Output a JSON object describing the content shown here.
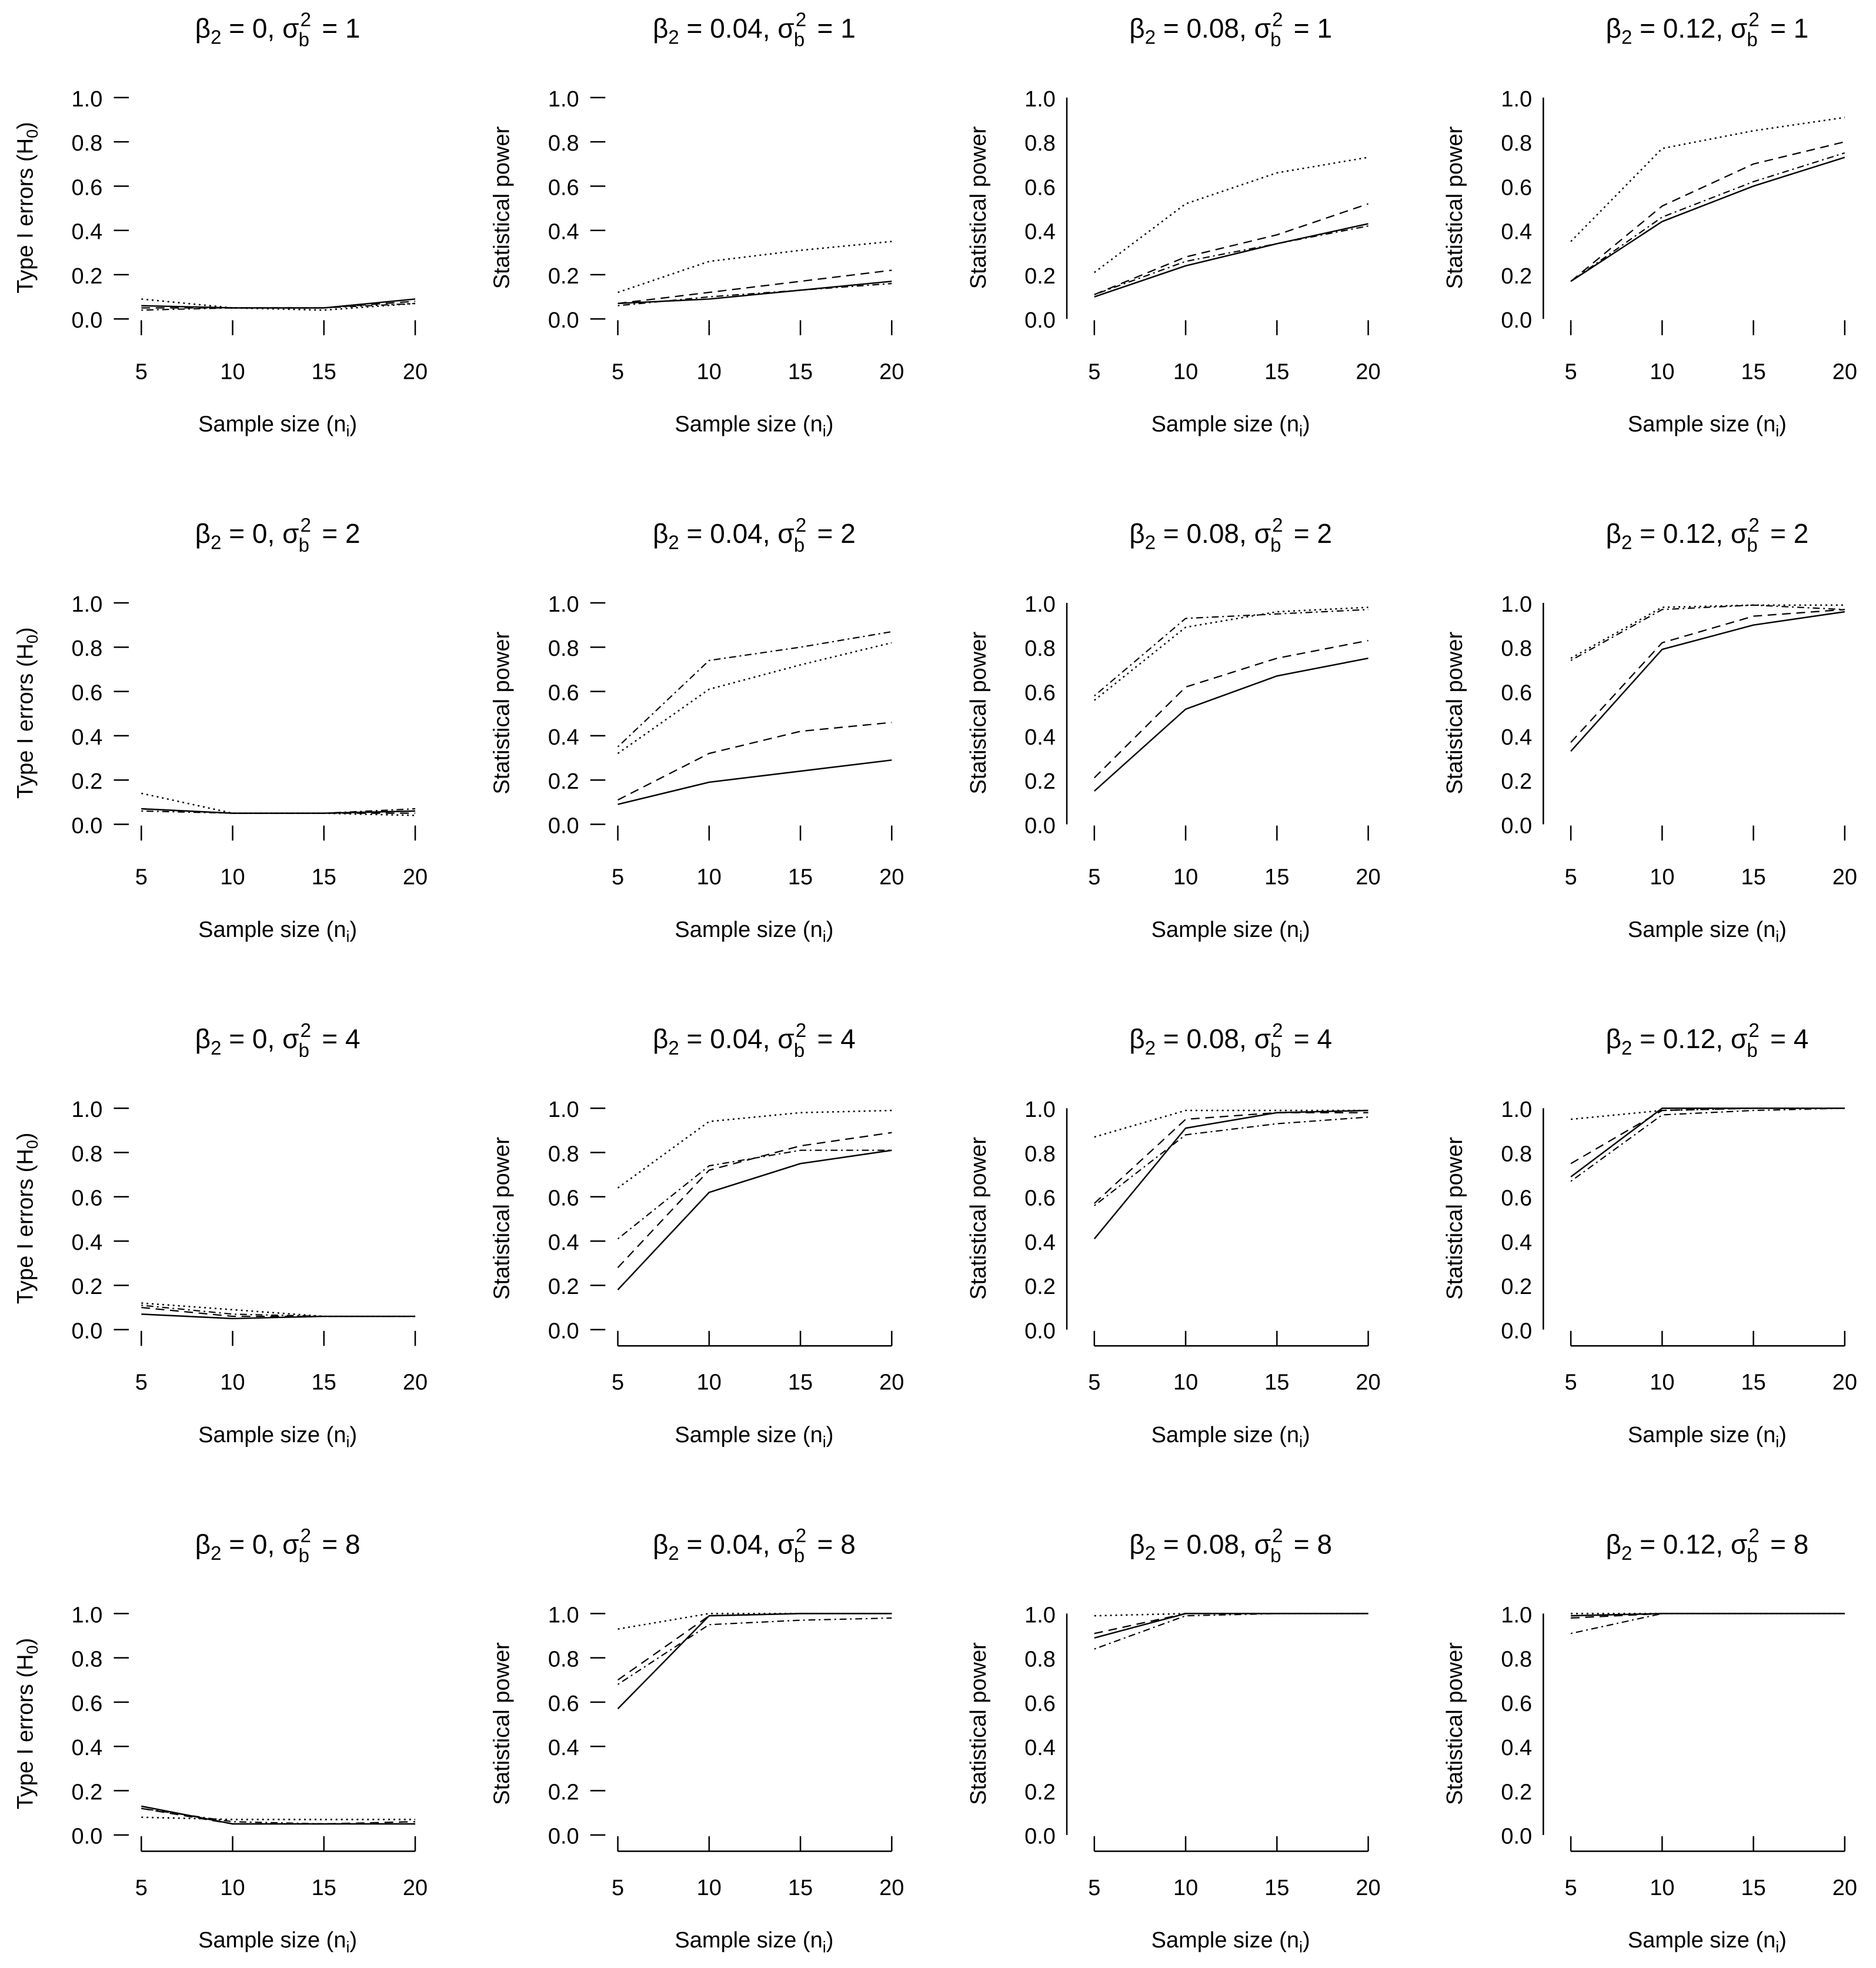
{
  "chart_data": {
    "type": "line",
    "layout": "4x4 grid of panels",
    "x": [
      5,
      10,
      15,
      20
    ],
    "x_ticks": [
      "5",
      "10",
      "15",
      "20"
    ],
    "y_ticks": [
      "0.0",
      "0.2",
      "0.4",
      "0.6",
      "0.8",
      "1.0"
    ],
    "ylim": [
      0,
      1
    ],
    "xlim": [
      5,
      20
    ],
    "xlabel": {
      "main": "Sample size (n",
      "sub": "i",
      "close": ")"
    },
    "ylabel_type1": {
      "main": "Type I errors (H",
      "sub": "0",
      "close": ")"
    },
    "ylabel_power": "Statistical power",
    "title_parts": {
      "beta": "β",
      "beta_sub": "2",
      "sigma": "σ",
      "sigma_sup": "2",
      "sigma_sub": "b",
      "eq": " = ",
      "comma": ", "
    },
    "line_styles": [
      "solid",
      "long-dash",
      "dot",
      "dot-dash"
    ],
    "panels": [
      {
        "beta2": "0",
        "sigma2b": "1",
        "ylabel": "type1",
        "series": [
          {
            "style": "solid",
            "values": [
              0.06,
              0.05,
              0.05,
              0.09
            ]
          },
          {
            "style": "long-dash",
            "values": [
              0.05,
              0.05,
              0.05,
              0.08
            ]
          },
          {
            "style": "dot",
            "values": [
              0.09,
              0.05,
              0.04,
              0.07
            ]
          },
          {
            "style": "dot-dash",
            "values": [
              0.04,
              0.05,
              0.05,
              0.07
            ]
          }
        ]
      },
      {
        "beta2": "0.04",
        "sigma2b": "1",
        "ylabel": "power",
        "series": [
          {
            "style": "solid",
            "values": [
              0.07,
              0.09,
              0.13,
              0.17
            ]
          },
          {
            "style": "long-dash",
            "values": [
              0.07,
              0.12,
              0.17,
              0.22
            ]
          },
          {
            "style": "dot",
            "values": [
              0.12,
              0.26,
              0.31,
              0.35
            ]
          },
          {
            "style": "dot-dash",
            "values": [
              0.06,
              0.1,
              0.13,
              0.16
            ]
          }
        ]
      },
      {
        "beta2": "0.08",
        "sigma2b": "1",
        "ylabel": "power",
        "series": [
          {
            "style": "solid",
            "values": [
              0.1,
              0.24,
              0.34,
              0.43
            ]
          },
          {
            "style": "long-dash",
            "values": [
              0.11,
              0.28,
              0.38,
              0.52
            ]
          },
          {
            "style": "dot",
            "values": [
              0.21,
              0.52,
              0.66,
              0.73
            ]
          },
          {
            "style": "dot-dash",
            "values": [
              0.11,
              0.26,
              0.34,
              0.42
            ]
          }
        ]
      },
      {
        "beta2": "0.12",
        "sigma2b": "1",
        "ylabel": "power",
        "series": [
          {
            "style": "solid",
            "values": [
              0.17,
              0.44,
              0.6,
              0.73
            ]
          },
          {
            "style": "long-dash",
            "values": [
              0.17,
              0.51,
              0.7,
              0.8
            ]
          },
          {
            "style": "dot",
            "values": [
              0.35,
              0.77,
              0.85,
              0.91
            ]
          },
          {
            "style": "dot-dash",
            "values": [
              0.17,
              0.46,
              0.62,
              0.75
            ]
          }
        ]
      },
      {
        "beta2": "0",
        "sigma2b": "2",
        "ylabel": "type1",
        "series": [
          {
            "style": "solid",
            "values": [
              0.07,
              0.05,
              0.05,
              0.06
            ]
          },
          {
            "style": "long-dash",
            "values": [
              0.07,
              0.05,
              0.05,
              0.05
            ]
          },
          {
            "style": "dot",
            "values": [
              0.14,
              0.05,
              0.05,
              0.04
            ]
          },
          {
            "style": "dot-dash",
            "values": [
              0.06,
              0.05,
              0.05,
              0.07
            ]
          }
        ]
      },
      {
        "beta2": "0.04",
        "sigma2b": "2",
        "ylabel": "power",
        "series": [
          {
            "style": "solid",
            "values": [
              0.09,
              0.19,
              0.24,
              0.29
            ]
          },
          {
            "style": "long-dash",
            "values": [
              0.11,
              0.32,
              0.42,
              0.46
            ]
          },
          {
            "style": "dot",
            "values": [
              0.32,
              0.61,
              0.72,
              0.82
            ]
          },
          {
            "style": "dot-dash",
            "values": [
              0.35,
              0.74,
              0.8,
              0.87
            ]
          }
        ]
      },
      {
        "beta2": "0.08",
        "sigma2b": "2",
        "ylabel": "power",
        "series": [
          {
            "style": "solid",
            "values": [
              0.15,
              0.52,
              0.67,
              0.75
            ]
          },
          {
            "style": "long-dash",
            "values": [
              0.21,
              0.62,
              0.75,
              0.83
            ]
          },
          {
            "style": "dot",
            "values": [
              0.56,
              0.89,
              0.96,
              0.98
            ]
          },
          {
            "style": "dot-dash",
            "values": [
              0.58,
              0.93,
              0.95,
              0.97
            ]
          }
        ]
      },
      {
        "beta2": "0.12",
        "sigma2b": "2",
        "ylabel": "power",
        "series": [
          {
            "style": "solid",
            "values": [
              0.33,
              0.79,
              0.9,
              0.96
            ]
          },
          {
            "style": "long-dash",
            "values": [
              0.37,
              0.82,
              0.94,
              0.97
            ]
          },
          {
            "style": "dot",
            "values": [
              0.75,
              0.98,
              0.99,
              0.99
            ]
          },
          {
            "style": "dot-dash",
            "values": [
              0.74,
              0.97,
              0.99,
              0.97
            ]
          }
        ]
      },
      {
        "beta2": "0",
        "sigma2b": "4",
        "ylabel": "type1",
        "series": [
          {
            "style": "solid",
            "values": [
              0.07,
              0.05,
              0.06,
              0.06
            ]
          },
          {
            "style": "long-dash",
            "values": [
              0.1,
              0.06,
              0.06,
              0.06
            ]
          },
          {
            "style": "dot",
            "values": [
              0.12,
              0.09,
              0.06,
              0.06
            ]
          },
          {
            "style": "dot-dash",
            "values": [
              0.11,
              0.07,
              0.06,
              0.06
            ]
          }
        ]
      },
      {
        "beta2": "0.04",
        "sigma2b": "4",
        "ylabel": "power",
        "series": [
          {
            "style": "solid",
            "values": [
              0.18,
              0.62,
              0.75,
              0.81
            ]
          },
          {
            "style": "long-dash",
            "values": [
              0.28,
              0.72,
              0.83,
              0.89
            ]
          },
          {
            "style": "dot",
            "values": [
              0.64,
              0.94,
              0.98,
              0.99
            ]
          },
          {
            "style": "dot-dash",
            "values": [
              0.41,
              0.74,
              0.81,
              0.81
            ]
          }
        ]
      },
      {
        "beta2": "0.08",
        "sigma2b": "4",
        "ylabel": "power",
        "series": [
          {
            "style": "solid",
            "values": [
              0.41,
              0.91,
              0.98,
              0.99
            ]
          },
          {
            "style": "long-dash",
            "values": [
              0.57,
              0.95,
              0.98,
              0.98
            ]
          },
          {
            "style": "dot",
            "values": [
              0.87,
              0.99,
              0.99,
              0.99
            ]
          },
          {
            "style": "dot-dash",
            "values": [
              0.56,
              0.88,
              0.93,
              0.96
            ]
          }
        ]
      },
      {
        "beta2": "0.12",
        "sigma2b": "4",
        "ylabel": "power",
        "series": [
          {
            "style": "solid",
            "values": [
              0.69,
              1.0,
              1.0,
              1.0
            ]
          },
          {
            "style": "long-dash",
            "values": [
              0.75,
              0.99,
              1.0,
              1.0
            ]
          },
          {
            "style": "dot",
            "values": [
              0.95,
              0.99,
              1.0,
              1.0
            ]
          },
          {
            "style": "dot-dash",
            "values": [
              0.67,
              0.97,
              0.99,
              1.0
            ]
          }
        ]
      },
      {
        "beta2": "0",
        "sigma2b": "8",
        "ylabel": "type1",
        "series": [
          {
            "style": "solid",
            "values": [
              0.13,
              0.05,
              0.05,
              0.05
            ]
          },
          {
            "style": "long-dash",
            "values": [
              0.12,
              0.05,
              0.05,
              0.06
            ]
          },
          {
            "style": "dot",
            "values": [
              0.08,
              0.07,
              0.07,
              0.07
            ]
          },
          {
            "style": "dot-dash",
            "values": [
              0.12,
              0.06,
              0.05,
              0.05
            ]
          }
        ]
      },
      {
        "beta2": "0.04",
        "sigma2b": "8",
        "ylabel": "power",
        "series": [
          {
            "style": "solid",
            "values": [
              0.57,
              0.99,
              1.0,
              1.0
            ]
          },
          {
            "style": "long-dash",
            "values": [
              0.7,
              0.99,
              1.0,
              1.0
            ]
          },
          {
            "style": "dot",
            "values": [
              0.93,
              1.0,
              1.0,
              1.0
            ]
          },
          {
            "style": "dot-dash",
            "values": [
              0.68,
              0.95,
              0.97,
              0.98
            ]
          }
        ]
      },
      {
        "beta2": "0.08",
        "sigma2b": "8",
        "ylabel": "power",
        "series": [
          {
            "style": "solid",
            "values": [
              0.89,
              1.0,
              1.0,
              1.0
            ]
          },
          {
            "style": "long-dash",
            "values": [
              0.91,
              1.0,
              1.0,
              1.0
            ]
          },
          {
            "style": "dot",
            "values": [
              0.99,
              1.0,
              1.0,
              1.0
            ]
          },
          {
            "style": "dot-dash",
            "values": [
              0.84,
              0.99,
              1.0,
              1.0
            ]
          }
        ]
      },
      {
        "beta2": "0.12",
        "sigma2b": "8",
        "ylabel": "power",
        "series": [
          {
            "style": "solid",
            "values": [
              0.99,
              1.0,
              1.0,
              1.0
            ]
          },
          {
            "style": "long-dash",
            "values": [
              0.98,
              1.0,
              1.0,
              1.0
            ]
          },
          {
            "style": "dot",
            "values": [
              1.0,
              1.0,
              1.0,
              1.0
            ]
          },
          {
            "style": "dot-dash",
            "values": [
              0.91,
              1.0,
              1.0,
              1.0
            ]
          }
        ]
      }
    ]
  }
}
